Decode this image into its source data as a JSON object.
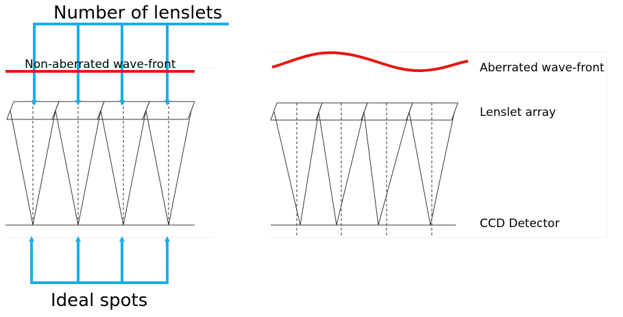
{
  "labels": {
    "number_of_lenslets": "Number of lenslets",
    "ideal_spots": "Ideal spots",
    "non_aberrated_wavefront": "Non-aberrated wave-front",
    "aberrated_wavefront": "Aberrated wave-front",
    "lenslet_array": "Lenslet array",
    "ccd_detector": "CCD Detector"
  },
  "colors": {
    "arrow": "#16aee8",
    "wavefront": "#e8160f",
    "line": "#333333",
    "frame": "#eeeeee"
  }
}
